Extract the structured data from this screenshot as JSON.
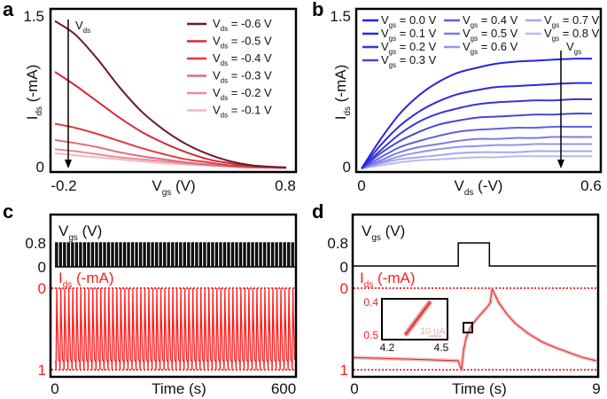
{
  "chart_data": [
    {
      "panel": "a",
      "type": "line",
      "xlabel": {
        "main": "V",
        "sub": "gs",
        "rest": " (V)"
      },
      "ylabel": {
        "main": "I",
        "sub": "ds",
        "rest": " (-mA)"
      },
      "xticks": [
        "-0.2",
        "0.8"
      ],
      "yticks": [
        "1.5",
        "0"
      ],
      "xlim": [
        -0.2,
        0.8
      ],
      "ylim": [
        0,
        1.5
      ],
      "arrow_label": {
        "main": "V",
        "sub": "ds"
      },
      "legend_position": "top-right",
      "x": [
        -0.24,
        -0.15,
        -0.05,
        0.05,
        0.15,
        0.25,
        0.35,
        0.45,
        0.55,
        0.65,
        0.8
      ],
      "series": [
        {
          "name": {
            "main": "V",
            "sub": "ds",
            "rest": " = -0.6 V"
          },
          "color": "#6b1a2a",
          "values": [
            1.45,
            1.32,
            1.08,
            0.8,
            0.56,
            0.38,
            0.24,
            0.14,
            0.07,
            0.03,
            0.01
          ]
        },
        {
          "name": {
            "main": "V",
            "sub": "ds",
            "rest": " = -0.5 V"
          },
          "color": "#d42a3a",
          "values": [
            0.95,
            0.82,
            0.66,
            0.5,
            0.36,
            0.25,
            0.16,
            0.09,
            0.05,
            0.02,
            0.01
          ]
        },
        {
          "name": {
            "main": "V",
            "sub": "ds",
            "rest": " = -0.4 V"
          },
          "color": "#e23a40",
          "values": [
            0.44,
            0.4,
            0.34,
            0.27,
            0.2,
            0.14,
            0.09,
            0.06,
            0.03,
            0.02,
            0.01
          ]
        },
        {
          "name": {
            "main": "V",
            "sub": "ds",
            "rest": " = -0.3 V"
          },
          "color": "#e06a80",
          "values": [
            0.28,
            0.25,
            0.21,
            0.16,
            0.12,
            0.09,
            0.06,
            0.04,
            0.02,
            0.01,
            0.005
          ]
        },
        {
          "name": {
            "main": "V",
            "sub": "ds",
            "rest": " = -0.2 V"
          },
          "color": "#eb8a98",
          "values": [
            0.19,
            0.17,
            0.14,
            0.11,
            0.09,
            0.07,
            0.05,
            0.03,
            0.02,
            0.01,
            0.005
          ]
        },
        {
          "name": {
            "main": "V",
            "sub": "ds",
            "rest": " = -0.1 V"
          },
          "color": "#f4b8bf",
          "values": [
            0.15,
            0.13,
            0.11,
            0.09,
            0.07,
            0.05,
            0.04,
            0.03,
            0.02,
            0.01,
            0.005
          ]
        }
      ]
    },
    {
      "panel": "b",
      "type": "line",
      "xlabel": {
        "main": "V",
        "sub": "ds",
        "rest": " (-V)"
      },
      "ylabel": {
        "main": "I",
        "sub": "ds",
        "rest": " (-mA)"
      },
      "xticks": [
        "0",
        "0.6"
      ],
      "yticks": [
        "1.5",
        "0"
      ],
      "xlim": [
        0,
        0.6
      ],
      "ylim": [
        0,
        1.5
      ],
      "arrow_label": {
        "main": "V",
        "sub": "gs"
      },
      "legend_position": "top",
      "x": [
        0,
        0.05,
        0.1,
        0.15,
        0.2,
        0.25,
        0.3,
        0.35,
        0.4,
        0.45,
        0.5,
        0.55,
        0.6
      ],
      "series": [
        {
          "name": {
            "main": "V",
            "sub": "gs",
            "rest": " = 0.0 V"
          },
          "color": "#2323e6",
          "values": [
            0,
            0.29,
            0.54,
            0.72,
            0.85,
            0.94,
            0.99,
            1.03,
            1.05,
            1.06,
            1.07,
            1.08,
            1.08
          ]
        },
        {
          "name": {
            "main": "V",
            "sub": "gs",
            "rest": " = 0.1 V"
          },
          "color": "#2a2ae0",
          "values": [
            0,
            0.23,
            0.42,
            0.56,
            0.66,
            0.73,
            0.77,
            0.8,
            0.81,
            0.82,
            0.83,
            0.84,
            0.84
          ]
        },
        {
          "name": {
            "main": "V",
            "sub": "gs",
            "rest": " = 0.2 V"
          },
          "color": "#3535dc",
          "values": [
            0,
            0.18,
            0.34,
            0.46,
            0.54,
            0.59,
            0.63,
            0.65,
            0.66,
            0.67,
            0.67,
            0.68,
            0.68
          ]
        },
        {
          "name": {
            "main": "V",
            "sub": "gs",
            "rest": " = 0.3 V"
          },
          "color": "#4646dc",
          "values": [
            0,
            0.15,
            0.27,
            0.36,
            0.43,
            0.47,
            0.5,
            0.51,
            0.52,
            0.53,
            0.53,
            0.54,
            0.54
          ]
        },
        {
          "name": {
            "main": "V",
            "sub": "gs",
            "rest": " = 0.4 V"
          },
          "color": "#6060e0",
          "values": [
            0,
            0.11,
            0.21,
            0.27,
            0.32,
            0.36,
            0.38,
            0.39,
            0.4,
            0.4,
            0.41,
            0.41,
            0.41
          ]
        },
        {
          "name": {
            "main": "V",
            "sub": "gs",
            "rest": " = 0.5 V"
          },
          "color": "#7a7ae6",
          "values": [
            0,
            0.08,
            0.16,
            0.21,
            0.24,
            0.27,
            0.29,
            0.29,
            0.3,
            0.3,
            0.31,
            0.31,
            0.31
          ]
        },
        {
          "name": {
            "main": "V",
            "sub": "gs",
            "rest": " = 0.6 V"
          },
          "color": "#9494ec",
          "values": [
            0,
            0.06,
            0.12,
            0.16,
            0.19,
            0.21,
            0.22,
            0.23,
            0.23,
            0.24,
            0.24,
            0.24,
            0.24
          ]
        },
        {
          "name": {
            "main": "V",
            "sub": "gs",
            "rest": " = 0.7 V"
          },
          "color": "#a6a6ee",
          "values": [
            0,
            0.05,
            0.09,
            0.11,
            0.13,
            0.15,
            0.16,
            0.16,
            0.16,
            0.17,
            0.17,
            0.17,
            0.17
          ]
        },
        {
          "name": {
            "main": "V",
            "sub": "gs",
            "rest": " = 0.8 V"
          },
          "color": "#b8b8f2",
          "values": [
            0,
            0.03,
            0.06,
            0.08,
            0.09,
            0.1,
            0.11,
            0.11,
            0.12,
            0.12,
            0.12,
            0.12,
            0.12
          ]
        }
      ]
    },
    {
      "panel": "c",
      "type": "line",
      "xlabel": "Time (s)",
      "xticks": [
        "0",
        "600"
      ],
      "xlim": [
        0,
        600
      ],
      "vgs_label": {
        "main": "V",
        "sub": "gs",
        "rest": " (V)"
      },
      "vgs_ticks": [
        "0.8",
        "0"
      ],
      "ids_label": {
        "main": "I",
        "sub": "ds",
        "rest": " (-mA)"
      },
      "ids_ticks": [
        "0",
        "1"
      ],
      "vgs_color": "#000000",
      "ids_color": "#ff1a1a",
      "pulse_period_s": 10,
      "pulse_width_s": 1.1,
      "vgs_high": 0.8,
      "vgs_low": 0,
      "ids_on": 0,
      "ids_off": 0.9
    },
    {
      "panel": "d",
      "type": "line",
      "xlabel": "Time (s)",
      "xticks": [
        "0",
        "9"
      ],
      "xlim": [
        0,
        9
      ],
      "vgs_label": {
        "main": "V",
        "sub": "gs",
        "rest": " (V)"
      },
      "vgs_ticks": [
        "0.8",
        "0"
      ],
      "ids_label": {
        "main": "I",
        "sub": "ds",
        "rest": " (-mA)"
      },
      "ids_ticks": [
        "0",
        "1"
      ],
      "vgs": {
        "t": [
          0,
          3.9,
          3.9,
          5.05,
          5.05,
          9
        ],
        "v": [
          0,
          0,
          0.8,
          0.8,
          0,
          0
        ]
      },
      "ids": {
        "t": [
          0,
          1,
          2,
          3,
          3.9,
          4.02,
          4.1,
          4.2,
          4.4,
          4.7,
          5.0,
          5.08,
          5.15,
          5.4,
          5.7,
          6.0,
          6.5,
          7.0,
          7.5,
          8.0,
          8.5,
          9.0
        ],
        "v": [
          0.85,
          0.86,
          0.87,
          0.88,
          0.89,
          1.0,
          0.75,
          0.6,
          0.45,
          0.33,
          0.22,
          0.18,
          0.01,
          0.18,
          0.32,
          0.43,
          0.56,
          0.66,
          0.73,
          0.79,
          0.85,
          0.89
        ]
      },
      "inset": {
        "xticks": [
          "4.2",
          "4.5"
        ],
        "yticks": [
          "0.4",
          "0.5"
        ],
        "xlim": [
          4.2,
          4.5
        ],
        "ylim": [
          0.4,
          0.5
        ],
        "t": [
          4.3,
          4.44
        ],
        "v": [
          0.5,
          0.4
        ],
        "scale_bar_label": "10 uA"
      }
    }
  ],
  "panel_labels": [
    "a",
    "b",
    "c",
    "d"
  ]
}
